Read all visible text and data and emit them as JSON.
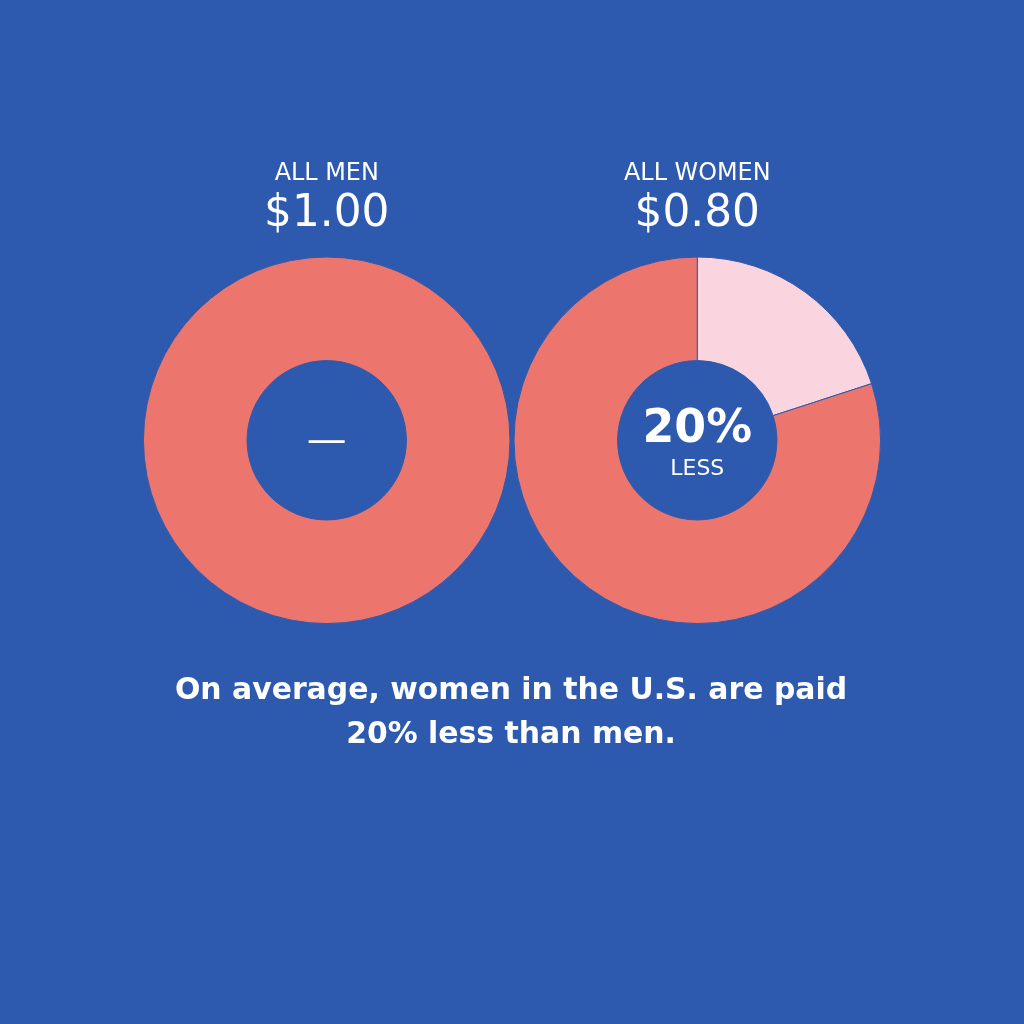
{
  "chart_data": [
    {
      "type": "donut",
      "title": "ALL MEN",
      "subtitle": "$1.00",
      "categories": [
        null
      ],
      "values": [
        100
      ],
      "colors": [
        "#ec766d"
      ],
      "annotations": [
        "—"
      ]
    },
    {
      "type": "donut",
      "title": "ALL WOMEN",
      "subtitle": "$0.80",
      "categories": [
        null,
        null
      ],
      "values": [
        20,
        80
      ],
      "colors": [
        "#fad4df",
        "#ec766d"
      ],
      "annotations": [
        "20%",
        "LESS"
      ]
    },
    {
      "type": "other",
      "annotations": [
        "On average, women in the U.S. are paid 20% less than men."
      ]
    }
  ]
}
